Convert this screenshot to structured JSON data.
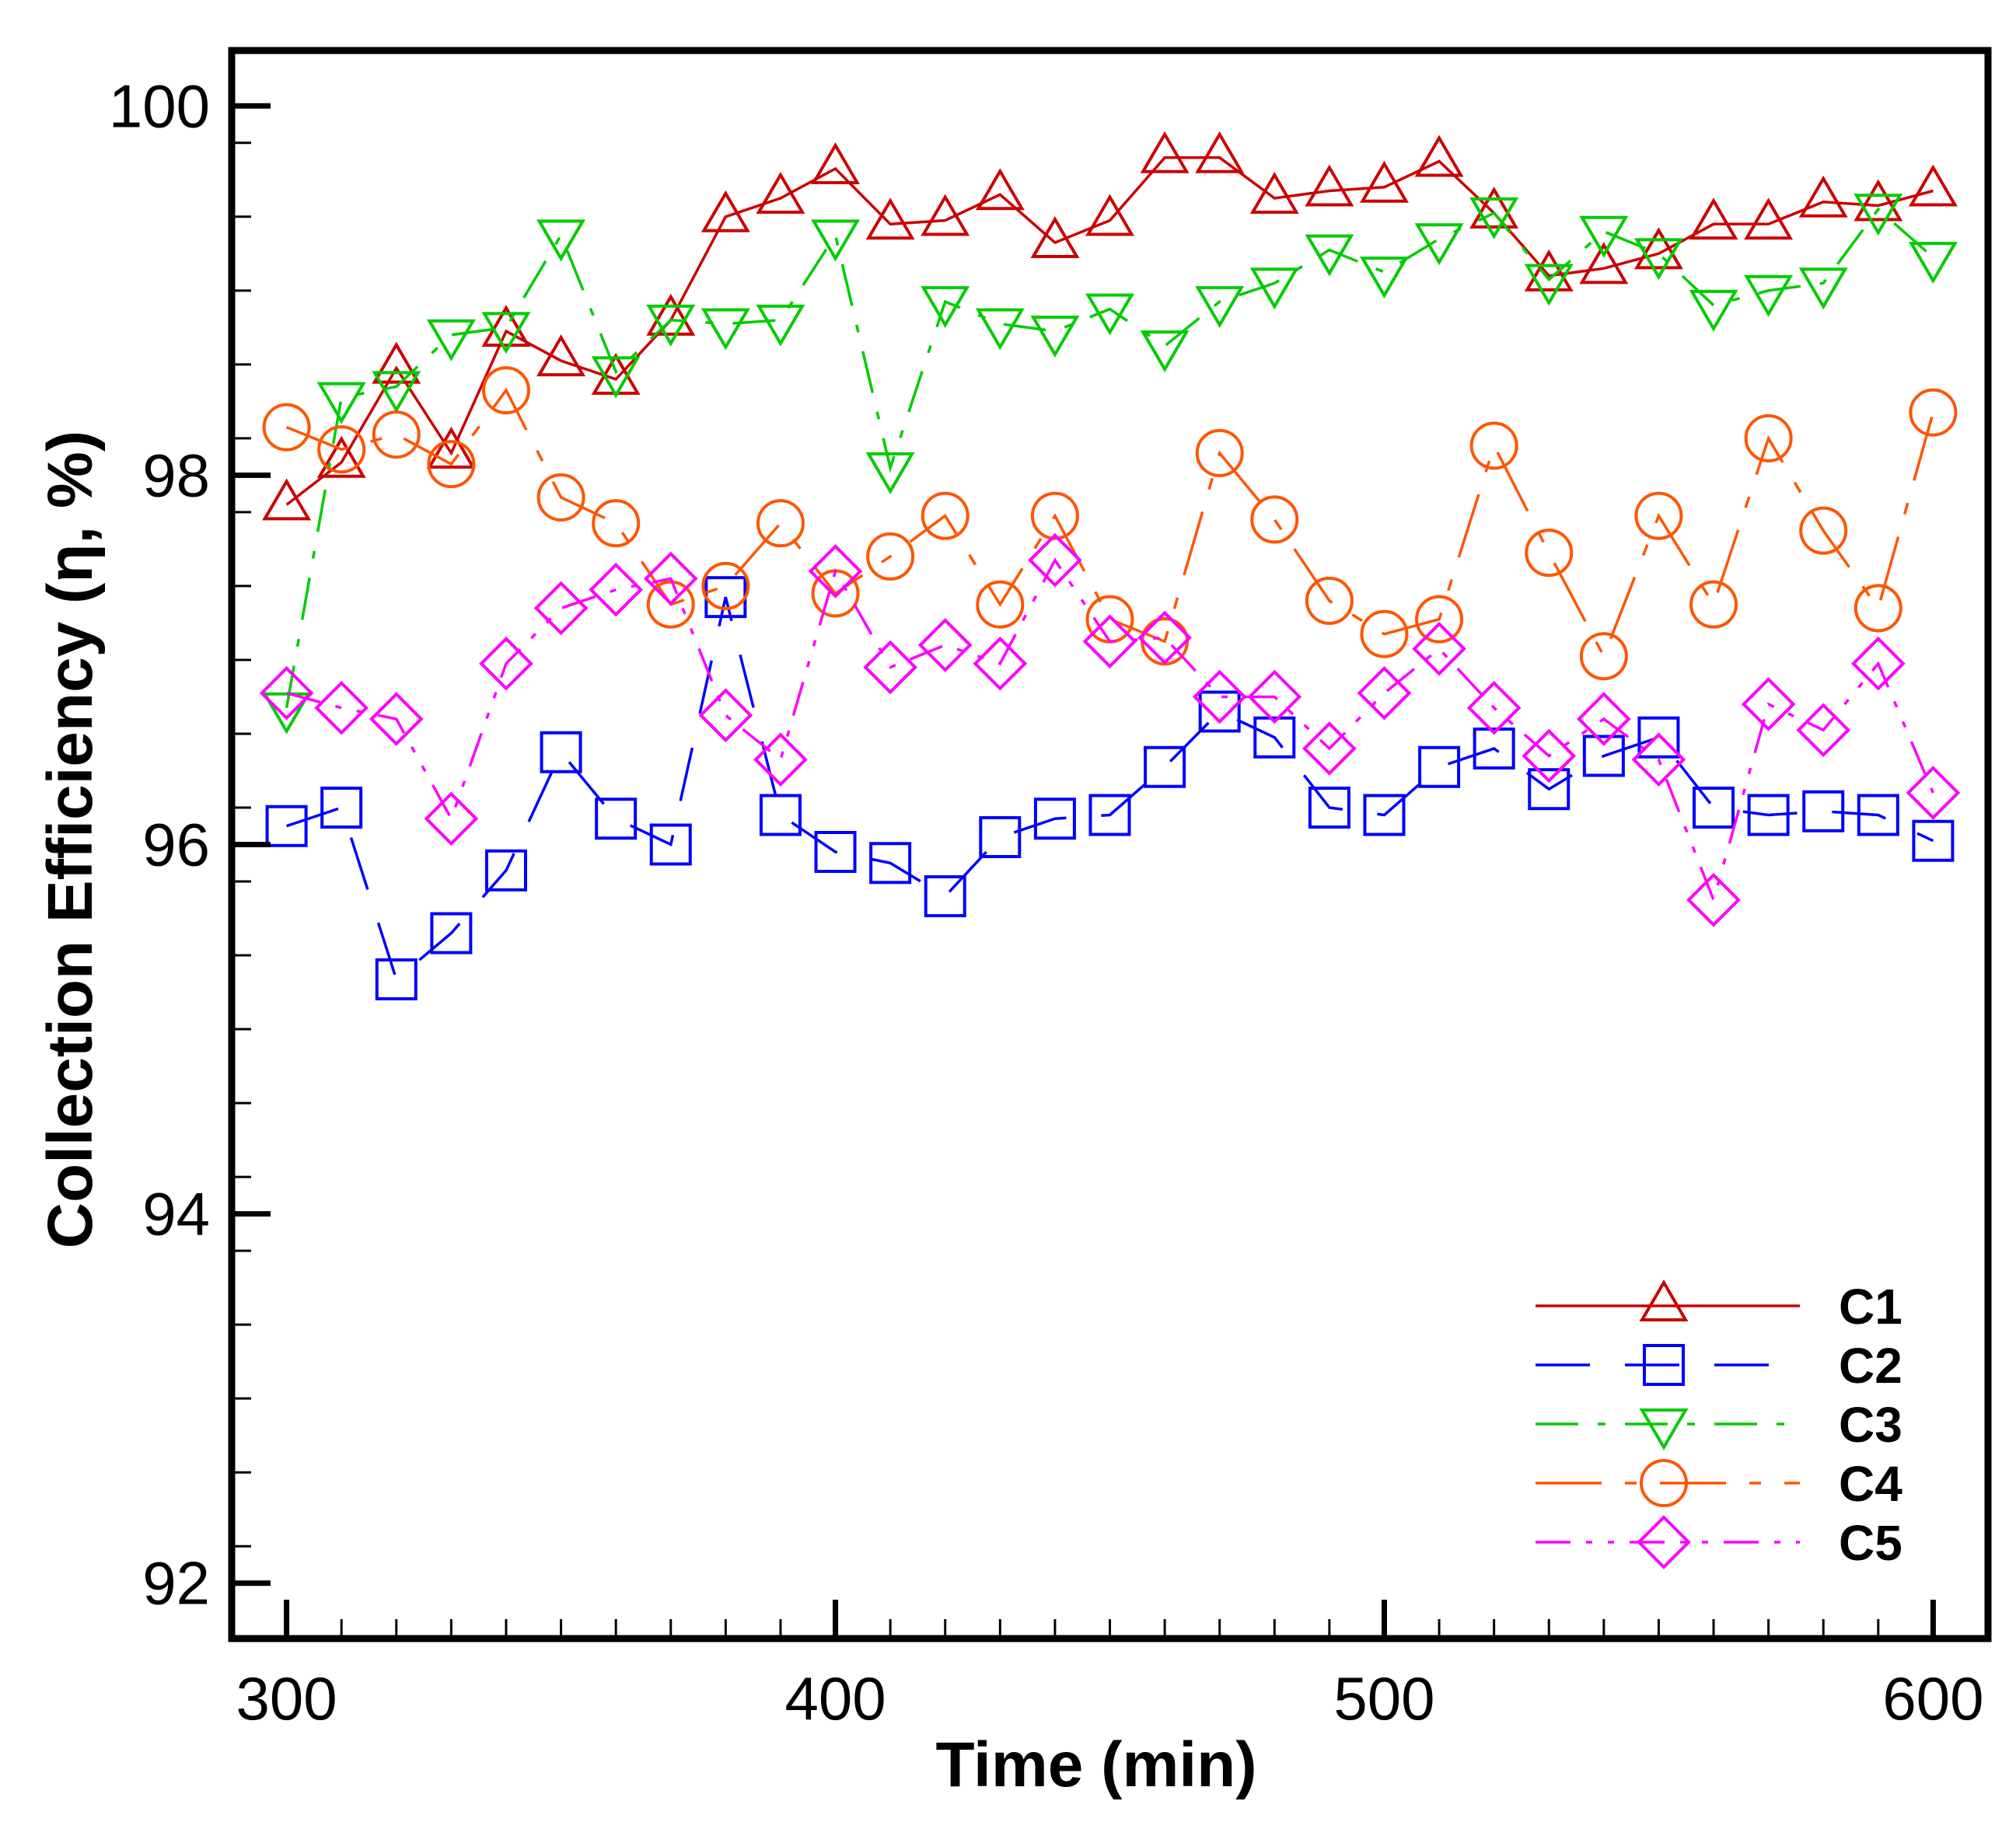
{
  "chart_data": {
    "type": "line",
    "title": "",
    "xlabel": "Time (min)",
    "ylabel": "Collection Efficiency (η, %)",
    "xlim": [
      290,
      610
    ],
    "ylim": [
      91.7,
      100.3
    ],
    "xticks": [
      300,
      400,
      500,
      600
    ],
    "yticks": [
      92,
      94,
      96,
      98,
      100
    ],
    "grid": false,
    "legend_position": "bottom-right",
    "x": [
      300,
      310,
      320,
      330,
      340,
      350,
      360,
      370,
      380,
      390,
      400,
      410,
      420,
      430,
      440,
      450,
      460,
      470,
      480,
      490,
      500,
      510,
      520,
      530,
      540,
      550,
      560,
      570,
      580,
      590,
      600
    ],
    "series": [
      {
        "name": "C1",
        "color": "#cc0000",
        "marker": "triangle-up",
        "dash": "solid",
        "values": [
          97.84,
          98.07,
          98.58,
          98.12,
          98.78,
          98.62,
          98.52,
          98.84,
          99.4,
          99.5,
          99.66,
          99.36,
          99.38,
          99.52,
          99.26,
          99.38,
          99.72,
          99.72,
          99.5,
          99.54,
          99.56,
          99.7,
          99.42,
          99.08,
          99.12,
          99.2,
          99.36,
          99.36,
          99.48,
          99.46,
          99.54
        ]
      },
      {
        "name": "C2",
        "color": "#0000ff",
        "marker": "square",
        "dash": "long-dash",
        "values": [
          96.1,
          96.2,
          95.27,
          95.52,
          95.86,
          96.5,
          96.14,
          96.0,
          97.34,
          96.16,
          95.96,
          95.9,
          95.72,
          96.04,
          96.14,
          96.16,
          96.42,
          96.72,
          96.58,
          96.2,
          96.16,
          96.42,
          96.52,
          96.3,
          96.48,
          96.58,
          96.2,
          96.16,
          96.18,
          96.16,
          96.02
        ]
      },
      {
        "name": "C3",
        "color": "#00cc00",
        "marker": "triangle-down",
        "dash": "dash-dot",
        "values": [
          96.74,
          98.42,
          98.48,
          98.76,
          98.8,
          99.3,
          98.56,
          98.84,
          98.82,
          98.84,
          99.3,
          98.04,
          98.94,
          98.82,
          98.78,
          98.9,
          98.7,
          98.94,
          99.04,
          99.22,
          99.1,
          99.28,
          99.42,
          99.06,
          99.32,
          99.2,
          98.92,
          99.0,
          99.04,
          99.44,
          99.18
        ]
      },
      {
        "name": "C4",
        "color": "#ff5500",
        "marker": "circle",
        "dash": "long-dash-dot",
        "values": [
          98.26,
          98.14,
          98.22,
          98.06,
          98.46,
          97.88,
          97.74,
          97.3,
          97.4,
          97.74,
          97.36,
          97.56,
          97.78,
          97.3,
          97.78,
          97.22,
          97.1,
          98.12,
          97.76,
          97.32,
          97.14,
          97.22,
          98.16,
          97.58,
          97.02,
          97.78,
          97.3,
          98.2,
          97.7,
          97.28,
          98.34
        ]
      },
      {
        "name": "C5",
        "color": "#ff00ff",
        "marker": "diamond",
        "dash": "dash-dot-dot",
        "values": [
          96.82,
          96.74,
          96.68,
          96.14,
          96.98,
          97.28,
          97.38,
          97.44,
          96.7,
          96.46,
          97.48,
          96.96,
          97.08,
          96.98,
          97.54,
          97.1,
          97.12,
          96.8,
          96.8,
          96.52,
          96.82,
          97.06,
          96.74,
          96.48,
          96.68,
          96.46,
          95.7,
          96.76,
          96.62,
          96.98,
          96.28
        ]
      }
    ]
  }
}
